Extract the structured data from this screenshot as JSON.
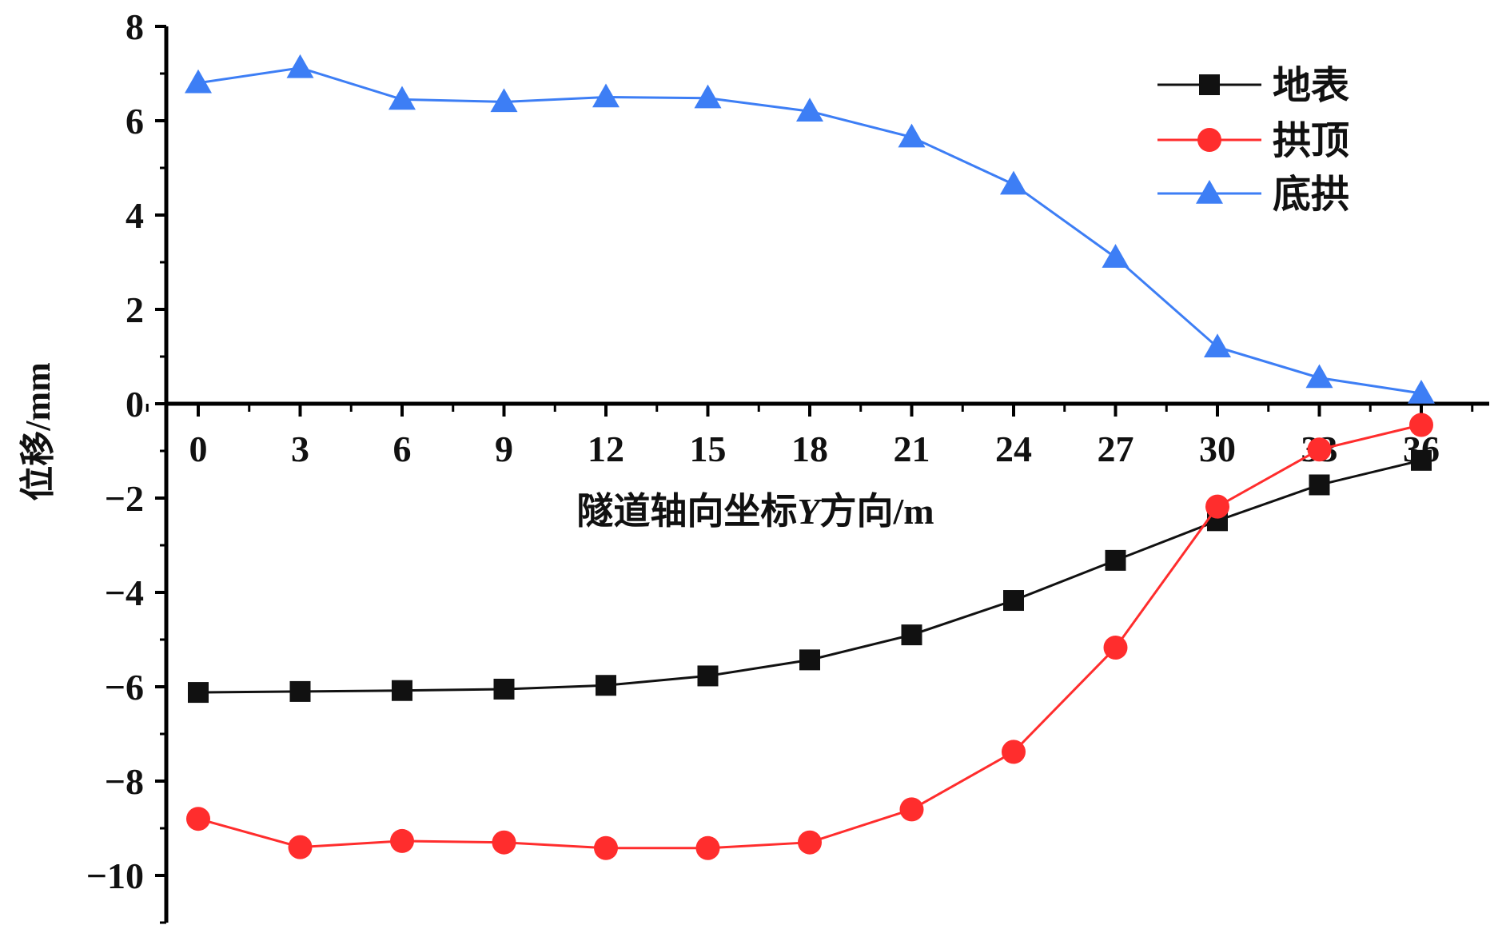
{
  "chart_data": {
    "type": "line",
    "xlabel_prefix": "隧道轴向坐标",
    "xlabel_var": "Y",
    "xlabel_suffix": "方向/m",
    "ylabel": "位移/mm",
    "x": [
      0,
      3,
      6,
      9,
      12,
      15,
      18,
      21,
      24,
      27,
      30,
      33,
      36
    ],
    "xlim": [
      -1,
      38
    ],
    "ylim": [
      -11,
      8
    ],
    "x_ticks": [
      0,
      3,
      6,
      9,
      12,
      15,
      18,
      21,
      24,
      27,
      30,
      33,
      36
    ],
    "y_ticks": [
      8,
      6,
      4,
      2,
      0,
      -2,
      -4,
      -6,
      -8,
      -10
    ],
    "y_tick_labels": [
      "8",
      "6",
      "4",
      "2",
      "0",
      "−2",
      "−4",
      "−6",
      "−8",
      "−10"
    ],
    "grid": false,
    "legend_position": "top-right",
    "series": [
      {
        "name": "地表",
        "color": "#111111",
        "marker": "square",
        "values": [
          -6.12,
          -6.1,
          -6.08,
          -6.05,
          -5.97,
          -5.77,
          -5.43,
          -4.9,
          -4.17,
          -3.32,
          -2.48,
          -1.72,
          -1.2
        ]
      },
      {
        "name": "拱顶",
        "color": "#ff2d2d",
        "marker": "circle",
        "values": [
          -8.8,
          -9.4,
          -9.27,
          -9.3,
          -9.42,
          -9.42,
          -9.3,
          -8.6,
          -7.38,
          -5.17,
          -2.18,
          -0.97,
          -0.45
        ]
      },
      {
        "name": "底拱",
        "color": "#3d7ef5",
        "marker": "triangle",
        "values": [
          6.8,
          7.12,
          6.45,
          6.4,
          6.5,
          6.48,
          6.2,
          5.65,
          4.65,
          3.1,
          1.2,
          0.55,
          0.22
        ]
      }
    ]
  }
}
